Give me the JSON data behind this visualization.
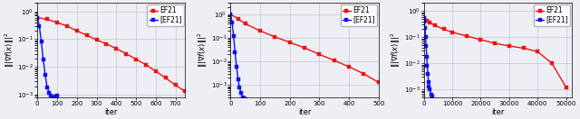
{
  "subplots": [
    {
      "xlim": [
        0,
        750
      ],
      "xticks": [
        0,
        100,
        200,
        300,
        400,
        500,
        600,
        700
      ],
      "xlabel": "iter",
      "ylabel": "$\\||\\nabla f(x)\\||^2$",
      "ylim": [
        0.0008,
        2.0
      ],
      "red_x": [
        0,
        50,
        100,
        150,
        200,
        250,
        300,
        350,
        400,
        450,
        500,
        550,
        600,
        650,
        700,
        750
      ],
      "red_y": [
        0.6,
        0.52,
        0.4,
        0.3,
        0.2,
        0.14,
        0.095,
        0.068,
        0.046,
        0.03,
        0.019,
        0.012,
        0.007,
        0.004,
        0.0022,
        0.0013
      ],
      "blue_x": [
        0,
        10,
        20,
        30,
        40,
        50,
        60,
        70,
        80,
        90,
        100
      ],
      "blue_y": [
        0.6,
        0.3,
        0.08,
        0.018,
        0.005,
        0.0018,
        0.0012,
        0.0009,
        0.0008,
        0.00085,
        0.0009
      ]
    },
    {
      "xlim": [
        0,
        500
      ],
      "xticks": [
        0,
        100,
        200,
        300,
        400,
        500
      ],
      "xlabel": "iter",
      "ylabel": "$\\||\\nabla f(x)\\||^2$",
      "ylim": [
        0.0003,
        3.0
      ],
      "red_x": [
        0,
        25,
        50,
        100,
        150,
        200,
        250,
        300,
        350,
        400,
        450,
        500
      ],
      "red_y": [
        1.0,
        0.65,
        0.4,
        0.2,
        0.11,
        0.065,
        0.038,
        0.02,
        0.011,
        0.006,
        0.003,
        0.0013
      ],
      "blue_x": [
        0,
        5,
        10,
        15,
        20,
        25,
        30,
        35,
        40,
        45,
        50
      ],
      "blue_y": [
        1.0,
        0.45,
        0.12,
        0.025,
        0.006,
        0.0018,
        0.0008,
        0.00045,
        0.0003,
        0.00028,
        0.00026
      ]
    },
    {
      "xlim": [
        0,
        52000
      ],
      "xticks": [
        0,
        10000,
        20000,
        30000,
        40000,
        50000
      ],
      "xlabel": "iter",
      "ylabel": "$\\||\\nabla f(x)\\||^2$",
      "ylim": [
        0.0005,
        2.0
      ],
      "red_x": [
        0,
        1000,
        2000,
        4000,
        7000,
        10000,
        15000,
        20000,
        25000,
        30000,
        35000,
        40000,
        45000,
        50000
      ],
      "red_y": [
        0.55,
        0.44,
        0.36,
        0.28,
        0.2,
        0.155,
        0.11,
        0.08,
        0.058,
        0.046,
        0.038,
        0.028,
        0.01,
        0.0012
      ],
      "blue_x": [
        0,
        200,
        400,
        600,
        800,
        1000,
        1200,
        1400,
        1600,
        1800,
        2000,
        2500,
        3000
      ],
      "blue_y": [
        0.55,
        0.38,
        0.22,
        0.1,
        0.045,
        0.018,
        0.008,
        0.004,
        0.002,
        0.0013,
        0.001,
        0.00065,
        0.00055
      ]
    }
  ],
  "red_color": "#EE1111",
  "blue_color": "#1111EE",
  "red_label": "EF21",
  "blue_label": "[EF21]",
  "marker_size": 3.0,
  "linewidth": 1.0,
  "grid_color": "#bbbbcc",
  "background_color": "#eeeef5",
  "legend_fontsize": 5.5,
  "tick_fontsize": 5.0,
  "label_fontsize": 6.0
}
